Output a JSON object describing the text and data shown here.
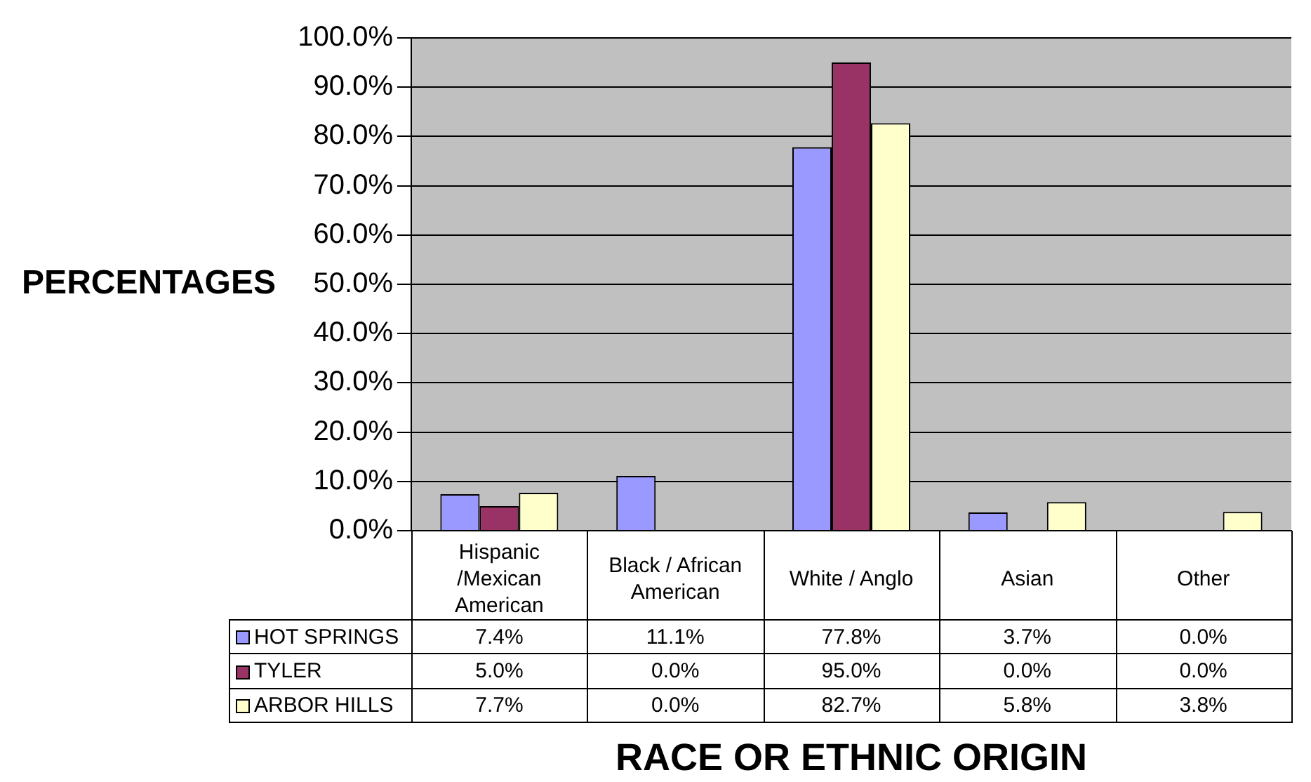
{
  "chart_data": {
    "type": "bar",
    "xlabel": "RACE OR ETHNIC ORIGIN",
    "ylabel": "PERCENTAGES",
    "categories": [
      "Hispanic /Mexican American",
      "Black / African American",
      "White / Anglo",
      "Asian",
      "Other"
    ],
    "series": [
      {
        "name": "HOT SPRINGS",
        "color": "#9999ff",
        "values": [
          7.4,
          11.1,
          77.8,
          3.7,
          0.0
        ],
        "value_labels": [
          "7.4%",
          "11.1%",
          "77.8%",
          "3.7%",
          "0.0%"
        ]
      },
      {
        "name": "TYLER",
        "color": "#993366",
        "values": [
          5.0,
          0.0,
          95.0,
          0.0,
          0.0
        ],
        "value_labels": [
          "5.0%",
          "0.0%",
          "95.0%",
          "0.0%",
          "0.0%"
        ]
      },
      {
        "name": "ARBOR HILLS",
        "color": "#ffffcc",
        "values": [
          7.7,
          0.0,
          82.7,
          5.8,
          3.8
        ],
        "value_labels": [
          "7.7%",
          "0.0%",
          "82.7%",
          "5.8%",
          "3.8%"
        ]
      }
    ],
    "ylim": [
      0,
      100
    ],
    "yticks": [
      {
        "value": 0,
        "label": "0.0%"
      },
      {
        "value": 10,
        "label": "10.0%"
      },
      {
        "value": 20,
        "label": "20.0%"
      },
      {
        "value": 30,
        "label": "30.0%"
      },
      {
        "value": 40,
        "label": "40.0%"
      },
      {
        "value": 50,
        "label": "50.0%"
      },
      {
        "value": 60,
        "label": "60.0%"
      },
      {
        "value": 70,
        "label": "70.0%"
      },
      {
        "value": 80,
        "label": "80.0%"
      },
      {
        "value": 90,
        "label": "90.0%"
      },
      {
        "value": 100,
        "label": "100.0%"
      }
    ],
    "grid": "y",
    "legend": "bottom left"
  }
}
